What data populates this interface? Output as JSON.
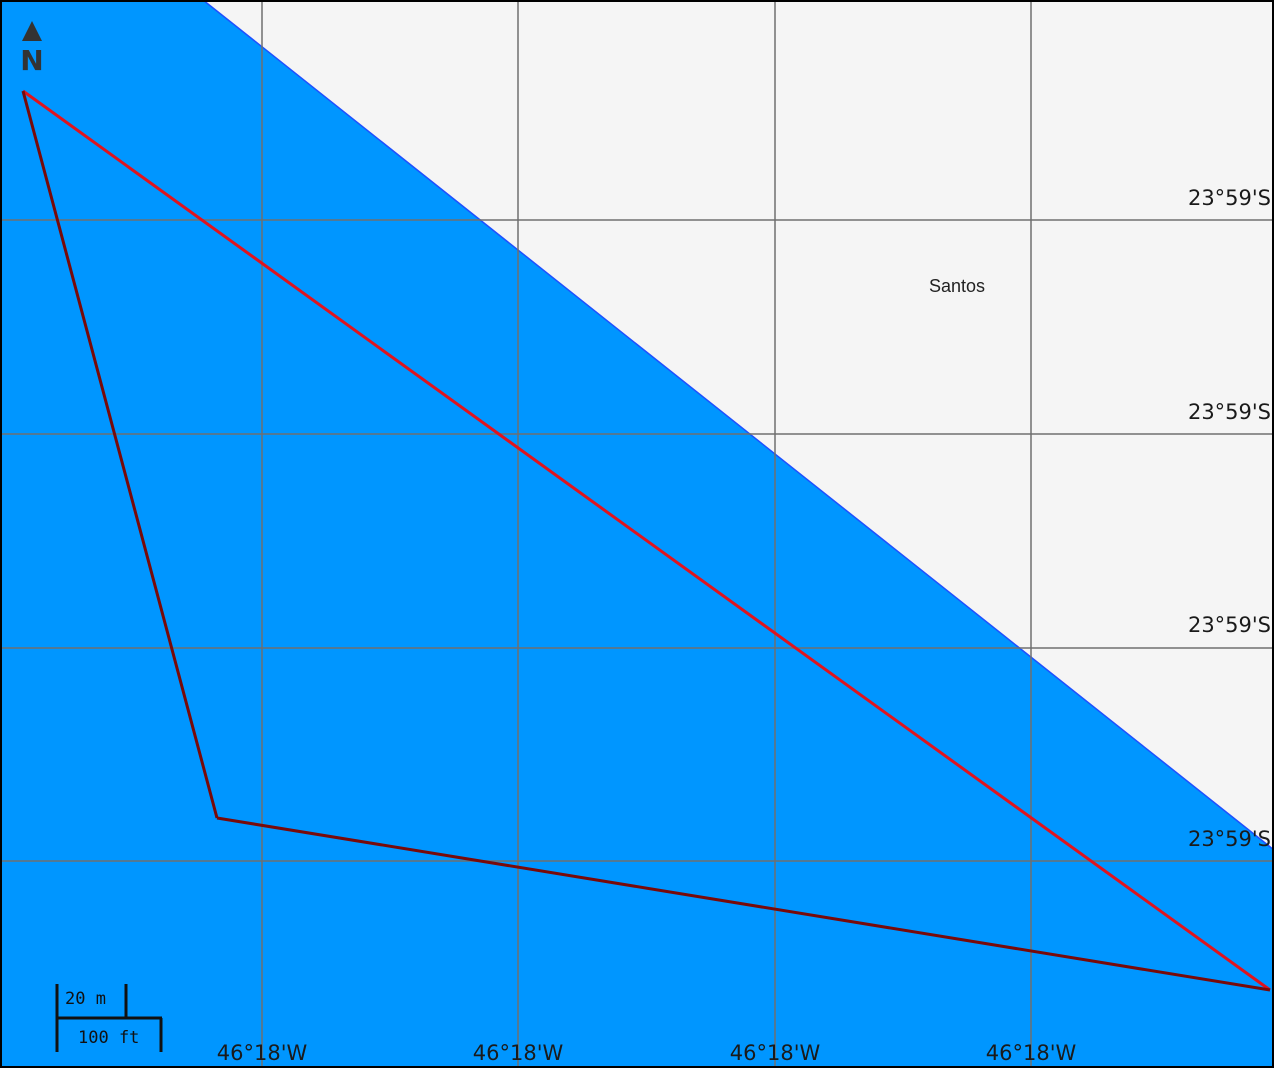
{
  "map": {
    "colors": {
      "water": "#0096ff",
      "land": "#f5f5f5",
      "shoreline": "#1e50ff",
      "grid": "#6f6f6f",
      "route_upper": "#e0141e",
      "route_lower": "#780a0a",
      "frame": "#000000"
    },
    "place_label": "Santos",
    "latitude_labels": [
      "23°59'S",
      "23°59'S",
      "23°59'S",
      "23°59'S"
    ],
    "longitude_labels": [
      "46°18'W",
      "46°18'W",
      "46°18'W",
      "46°18'W"
    ],
    "north_arrow": {
      "icon": "north-arrow-icon",
      "label": "N"
    },
    "scale_bar": {
      "metric_label": "20 m",
      "imperial_label": "100 ft"
    }
  }
}
